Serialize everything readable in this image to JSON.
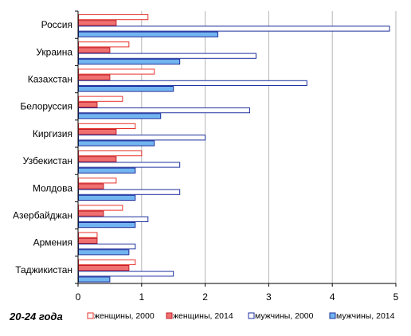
{
  "chart_data": {
    "type": "bar",
    "orientation": "horizontal",
    "corner_label": "20-24 года",
    "categories": [
      "Россия",
      "Украина",
      "Казахстан",
      "Белоруссия",
      "Киргизия",
      "Узбекистан",
      "Молдова",
      "Азербайджан",
      "Армения",
      "Таджикистан"
    ],
    "series": [
      {
        "name": "женщины, 2000",
        "style": "outline",
        "color": "#e8312a",
        "fill": "#ffffff",
        "values": [
          1.1,
          0.8,
          1.2,
          0.7,
          0.9,
          1.0,
          0.6,
          0.7,
          0.3,
          0.9
        ]
      },
      {
        "name": "женщины, 2014",
        "style": "filled",
        "color": "#c0202a",
        "fill": "#f07070",
        "values": [
          0.6,
          0.5,
          0.5,
          0.3,
          0.6,
          0.6,
          0.4,
          0.4,
          0.3,
          0.8
        ]
      },
      {
        "name": "мужчины, 2000",
        "style": "outline",
        "color": "#1c2f9c",
        "fill": "#ffffff",
        "values": [
          4.9,
          2.8,
          3.6,
          2.7,
          2.0,
          1.6,
          1.6,
          1.1,
          0.9,
          1.5
        ]
      },
      {
        "name": "мужчины, 2014",
        "style": "filled",
        "color": "#1c2f9c",
        "fill": "#72b4f0",
        "values": [
          2.2,
          1.6,
          1.5,
          1.3,
          1.2,
          0.9,
          0.9,
          0.9,
          0.8,
          0.5
        ]
      }
    ],
    "xlim": [
      0,
      5
    ],
    "xticks": [
      "0",
      "1",
      "2",
      "3",
      "4",
      "5"
    ],
    "grid": "vertical",
    "legend_position": "bottom"
  }
}
